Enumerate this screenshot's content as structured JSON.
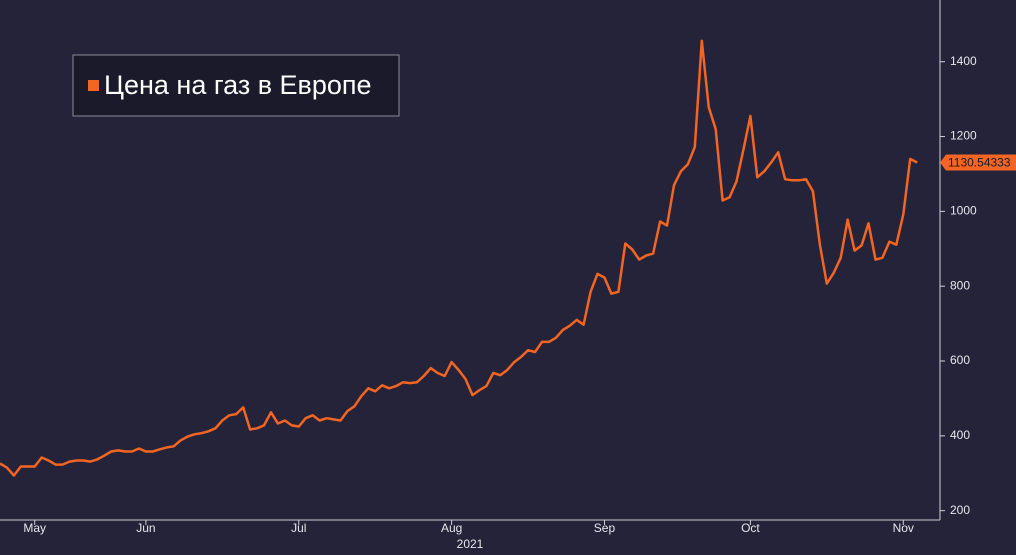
{
  "chart_data": {
    "type": "line",
    "x": [
      0,
      1,
      2,
      3,
      4,
      5,
      6,
      7,
      8,
      9,
      10,
      11,
      12,
      13,
      14,
      15,
      16,
      17,
      18,
      19,
      20,
      21,
      22,
      23,
      24,
      25,
      26,
      27,
      28,
      29,
      30,
      31,
      32,
      33,
      34,
      35,
      36,
      37,
      38,
      39,
      40,
      41,
      42,
      43,
      44,
      45,
      46,
      47,
      48,
      49,
      50,
      51,
      52,
      53,
      54,
      55,
      56,
      57,
      58,
      59,
      60,
      61,
      62,
      63,
      64,
      65,
      66,
      67,
      68,
      69,
      70,
      71,
      72,
      73,
      74,
      75,
      76,
      77,
      78,
      79,
      80,
      81,
      82,
      83,
      84,
      85,
      86,
      87,
      88,
      89,
      90,
      91,
      92,
      93,
      94,
      95,
      96,
      97,
      98,
      99,
      100,
      101,
      102,
      103,
      104,
      105,
      106,
      107,
      108,
      109,
      110,
      111,
      112,
      113,
      114,
      115,
      116,
      117,
      118,
      119,
      120,
      121,
      122,
      123,
      124,
      125,
      126,
      127,
      128,
      129,
      130,
      131,
      132
    ],
    "series": [
      {
        "name": "Цена на газ в Европе",
        "color": "#f26522",
        "values": [
          326,
          315,
          294,
          318,
          318,
          318,
          342,
          334,
          323,
          323,
          331,
          334,
          334,
          331,
          337,
          347,
          358,
          361,
          358,
          358,
          366,
          358,
          358,
          364,
          369,
          372,
          388,
          398,
          404,
          407,
          412,
          420,
          441,
          455,
          458,
          476,
          417,
          420,
          428,
          463,
          433,
          441,
          428,
          425,
          447,
          455,
          441,
          447,
          444,
          441,
          466,
          479,
          506,
          527,
          519,
          535,
          527,
          533,
          543,
          541,
          543,
          560,
          581,
          568,
          560,
          597,
          576,
          552,
          509,
          522,
          533,
          568,
          562,
          576,
          597,
          611,
          629,
          624,
          651,
          651,
          662,
          683,
          694,
          710,
          697,
          785,
          833,
          823,
          780,
          785,
          914,
          898,
          871,
          882,
          887,
          973,
          962,
          1070,
          1107,
          1126,
          1172,
          1456,
          1279,
          1220,
          1029,
          1038,
          1080,
          1166,
          1255,
          1091,
          1107,
          1131,
          1158,
          1086,
          1083,
          1083,
          1086,
          1054,
          911,
          807,
          836,
          876,
          978,
          895,
          909,
          968,
          871,
          876,
          919,
          911,
          992,
          1140,
          1130.54333
        ]
      }
    ],
    "xlim": [
      0,
      135
    ],
    "xticks": [
      {
        "value": 5,
        "label": "May"
      },
      {
        "value": 21,
        "label": "Jun"
      },
      {
        "value": 43,
        "label": "Jul"
      },
      {
        "value": 65,
        "label": "Aug"
      },
      {
        "value": 87,
        "label": "Sep"
      },
      {
        "value": 108,
        "label": "Oct"
      },
      {
        "value": 130,
        "label": "Nov"
      }
    ],
    "x_axis_year": "2021",
    "ylim": [
      175,
      1565
    ],
    "yticks": [
      200,
      400,
      600,
      800,
      1000,
      1200,
      1400
    ],
    "legend": "top-left"
  }
}
